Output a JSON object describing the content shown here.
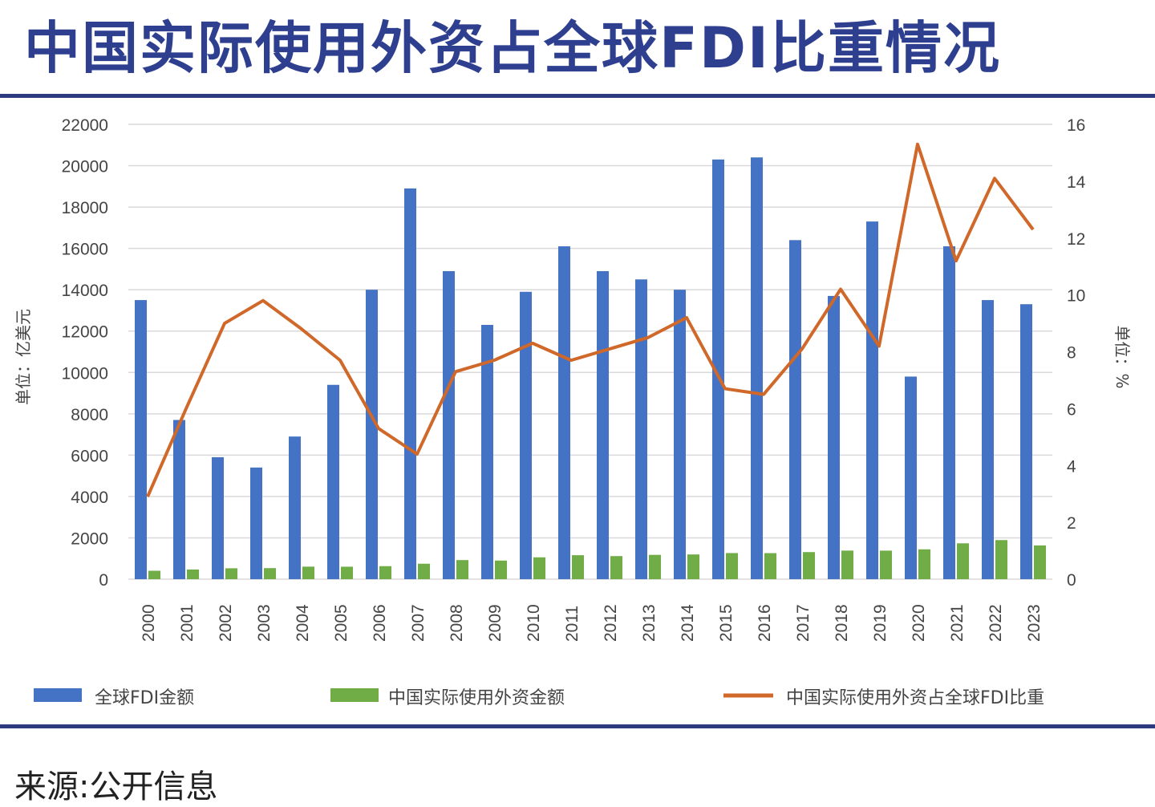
{
  "chart_data": {
    "type": "bar",
    "title": "中国实际使用外资占全球FDI比重情况",
    "source": "来源:公开信息",
    "ylabel_left": "单位：亿美元",
    "ylabel_right": "单位：%",
    "ylim_left": [
      0,
      22000
    ],
    "ylim_right": [
      0,
      16
    ],
    "yticks_left": [
      "0",
      "2000",
      "4000",
      "6000",
      "8000",
      "10000",
      "12000",
      "14000",
      "16000",
      "18000",
      "20000",
      "22000"
    ],
    "yticks_right": [
      "0",
      "2",
      "4",
      "6",
      "8",
      "10",
      "12",
      "14",
      "16"
    ],
    "grid": true,
    "legend_position": "bottom",
    "categories": [
      "2000",
      "2001",
      "2002",
      "2003",
      "2004",
      "2005",
      "2006",
      "2007",
      "2008",
      "2009",
      "2010",
      "2011",
      "2012",
      "2013",
      "2014",
      "2015",
      "2016",
      "2017",
      "2018",
      "2019",
      "2020",
      "2021",
      "2022",
      "2023"
    ],
    "series": [
      {
        "name": "全球FDI金额",
        "type": "bar",
        "axis": "left",
        "color": "#4472c4",
        "values": [
          13500,
          7700,
          5900,
          5400,
          6900,
          9400,
          14000,
          18900,
          14900,
          12300,
          13900,
          16100,
          14900,
          14500,
          14000,
          20300,
          20400,
          16400,
          13700,
          17300,
          9800,
          16100,
          13500,
          13300
        ]
      },
      {
        "name": "中国实际使用外资金额",
        "type": "bar",
        "axis": "left",
        "color": "#70ad47",
        "values": [
          407,
          469,
          527,
          535,
          606,
          603,
          630,
          748,
          924,
          900,
          1057,
          1160,
          1117,
          1176,
          1196,
          1263,
          1260,
          1310,
          1383,
          1381,
          1444,
          1735,
          1891,
          1633
        ]
      },
      {
        "name": "中国实际使用外资占全球FDI比重",
        "type": "line",
        "axis": "right",
        "color": "#d0682a",
        "values": [
          2.9,
          6.0,
          9.0,
          9.8,
          8.8,
          7.7,
          5.3,
          4.4,
          7.3,
          7.7,
          8.3,
          7.7,
          8.1,
          8.5,
          9.2,
          6.7,
          6.5,
          8.1,
          10.2,
          8.2,
          15.3,
          11.2,
          14.1,
          12.3
        ]
      }
    ]
  }
}
